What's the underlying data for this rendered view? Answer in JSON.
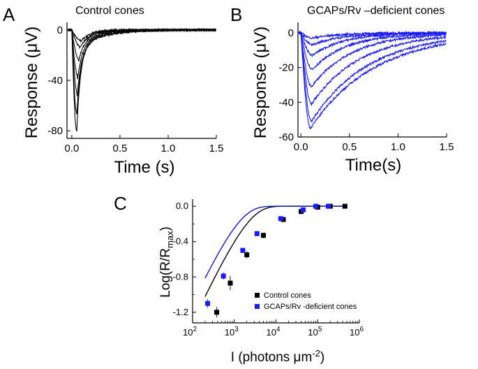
{
  "colors": {
    "control": "#000000",
    "gcap": "#1a1aff",
    "fit_c": "#000000",
    "fit_g": "#1515c8"
  },
  "chart_data": [
    {
      "panel": "A",
      "type": "line",
      "title": "Control cones",
      "xlabel": "Time (s)",
      "ylabel": "Response (μV)",
      "xlim": [
        -0.05,
        1.5
      ],
      "ylim": [
        -86,
        6
      ],
      "xticks": [
        "0.0",
        "0.5",
        "1.0",
        "1.5"
      ],
      "yticks": [
        "0",
        "-40",
        "-80"
      ],
      "series": [
        {
          "peak": -8,
          "t_peak": 0.09,
          "tau": 0.1,
          "recover": 0.08,
          "tail": -1.5
        },
        {
          "peak": -12,
          "t_peak": 0.08,
          "tau": 0.12,
          "recover": 0.08,
          "tail": -2.5
        },
        {
          "peak": -22,
          "t_peak": 0.07,
          "tau": 0.15,
          "recover": 0.06,
          "tail": -4
        },
        {
          "peak": -35,
          "t_peak": 0.06,
          "tau": 0.17,
          "recover": 0.055,
          "tail": -6
        },
        {
          "peak": -48,
          "t_peak": 0.055,
          "tau": 0.2,
          "recover": 0.05,
          "tail": -8
        },
        {
          "peak": -64,
          "t_peak": 0.05,
          "tau": 0.22,
          "recover": 0.045,
          "tail": -9
        },
        {
          "peak": -78,
          "t_peak": 0.05,
          "tau": 0.25,
          "recover": 0.04,
          "tail": -10
        }
      ]
    },
    {
      "panel": "B",
      "type": "line",
      "title": "GCAPs/Rv –deficient cones",
      "xlabel": "Time(s)",
      "ylabel": "Response (μV)",
      "xlim": [
        -0.03,
        1.5
      ],
      "ylim": [
        -60,
        6
      ],
      "xticks": [
        "0.0",
        "0.5",
        "1.0",
        "1.5"
      ],
      "yticks": [
        "0",
        "-20",
        "-40",
        "-60"
      ],
      "series": [
        {
          "peak": -3,
          "t_peak": 0.12,
          "tau": 0.3
        },
        {
          "peak": -7,
          "t_peak": 0.12,
          "tau": 0.3
        },
        {
          "peak": -13,
          "t_peak": 0.12,
          "tau": 0.32
        },
        {
          "peak": -21,
          "t_peak": 0.12,
          "tau": 0.36
        },
        {
          "peak": -31,
          "t_peak": 0.11,
          "tau": 0.42
        },
        {
          "peak": -41,
          "t_peak": 0.11,
          "tau": 0.5
        },
        {
          "peak": -51,
          "t_peak": 0.11,
          "tau": 0.58
        },
        {
          "peak": -55,
          "t_peak": 0.1,
          "tau": 0.65
        }
      ]
    },
    {
      "panel": "C",
      "type": "scatter",
      "xlabel": "I (photons μm⁻²)",
      "ylabel": "Log(R/Rₘₐₓ)",
      "x_scale": "log",
      "xlim": [
        100,
        1000000
      ],
      "ylim": [
        -1.32,
        0.08
      ],
      "xticks": [
        {
          "base": "10",
          "exp": "2"
        },
        {
          "base": "10",
          "exp": "3"
        },
        {
          "base": "10",
          "exp": "4"
        },
        {
          "base": "10",
          "exp": "5"
        },
        {
          "base": "10",
          "exp": "6"
        }
      ],
      "yticks": [
        "0.0",
        "-0.4",
        "-0.8",
        "-1.2"
      ],
      "series": [
        {
          "name": "Control cones",
          "x": [
            380,
            800,
            2000,
            5000,
            15000,
            40000,
            100000,
            200000,
            450000
          ],
          "y": [
            -1.2,
            -0.87,
            -0.55,
            -0.33,
            -0.15,
            -0.06,
            -0.01,
            0.0,
            0.0
          ],
          "err": [
            0.06,
            0.08,
            0.04,
            0.03,
            0.02,
            0.02,
            0.01,
            0.01,
            0.01
          ]
        },
        {
          "name": "GCAPs/Rv -deficient cones",
          "x": [
            230,
            550,
            1600,
            3500,
            13000,
            45000,
            90000,
            180000
          ],
          "y": [
            -1.1,
            -0.79,
            -0.5,
            -0.31,
            -0.14,
            -0.04,
            0.0,
            0.0
          ],
          "err": [
            0.05,
            0.04,
            0.03,
            0.03,
            0.02,
            0.01,
            0.01,
            0.01
          ]
        }
      ],
      "fits": [
        {
          "series": "Control cones",
          "sigma": 2000
        },
        {
          "series": "GCAPs/Rv -deficient cones",
          "sigma": 1200
        }
      ]
    }
  ]
}
